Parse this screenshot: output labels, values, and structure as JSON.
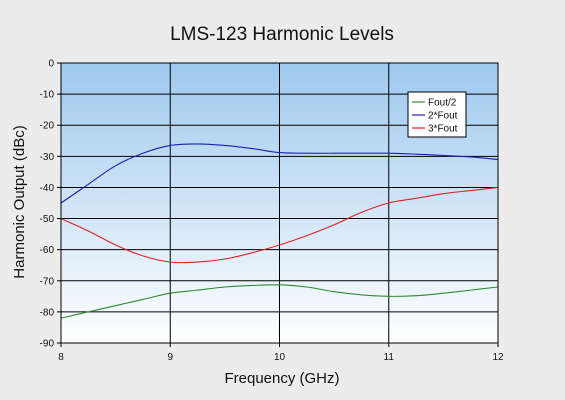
{
  "chart_data": {
    "type": "line",
    "title": "LMS-123 Harmonic Levels",
    "xlabel": "Frequency (GHz)",
    "ylabel": "Harmonic Output (dBc)",
    "xlim": [
      8,
      12
    ],
    "ylim": [
      -90,
      0
    ],
    "xticks": [
      8,
      9,
      10,
      11,
      12
    ],
    "yticks": [
      0,
      -10,
      -20,
      -30,
      -40,
      -50,
      -60,
      -70,
      -80,
      -90
    ],
    "grid": true,
    "legend_position": "top-right",
    "background_gradient": [
      "#9ec9ee",
      "#ffffff"
    ],
    "series": [
      {
        "name": "Fout/2",
        "color": "#2e8b2e",
        "x": [
          8.0,
          8.25,
          8.5,
          8.75,
          9.0,
          9.25,
          9.5,
          9.75,
          10.0,
          10.25,
          10.5,
          10.75,
          11.0,
          11.25,
          11.5,
          11.75,
          12.0
        ],
        "y": [
          -82,
          -80,
          -78,
          -76,
          -74,
          -73,
          -72,
          -71.5,
          -71.3,
          -72,
          -73.5,
          -74.5,
          -75,
          -74.8,
          -74,
          -73,
          -72
        ]
      },
      {
        "name": "2*Fout",
        "color": "#1f1fb0",
        "x": [
          8.0,
          8.25,
          8.5,
          8.75,
          9.0,
          9.25,
          9.5,
          9.75,
          10.0,
          10.25,
          10.5,
          10.75,
          11.0,
          11.25,
          11.5,
          11.75,
          12.0
        ],
        "y": [
          -45,
          -39,
          -33,
          -29,
          -26.5,
          -26,
          -26.5,
          -27.5,
          -28.8,
          -29,
          -29,
          -29,
          -29,
          -29.3,
          -29.7,
          -30.2,
          -31
        ]
      },
      {
        "name": "3*Fout",
        "color": "#e02020",
        "x": [
          8.0,
          8.25,
          8.5,
          8.75,
          9.0,
          9.25,
          9.5,
          9.75,
          10.0,
          10.25,
          10.5,
          10.75,
          11.0,
          11.25,
          11.5,
          11.75,
          12.0
        ],
        "y": [
          -50,
          -54,
          -58.5,
          -62,
          -64,
          -64,
          -63,
          -61,
          -58.5,
          -55.5,
          -52,
          -48,
          -45,
          -43.5,
          -42,
          -41,
          -40
        ]
      }
    ]
  }
}
